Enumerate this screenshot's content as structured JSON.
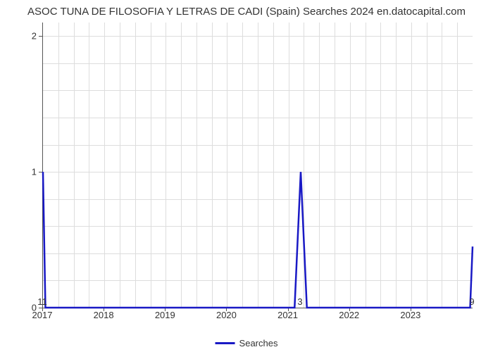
{
  "chart": {
    "type": "line",
    "title": "ASOC TUNA DE FILOSOFIA Y LETRAS DE CADI (Spain) Searches 2024 en.datocapital.com",
    "title_fontsize": 15,
    "title_color": "#333333",
    "background_color": "#ffffff",
    "grid_color": "#dddddd",
    "axis_color": "#555555",
    "line_color": "#1919c5",
    "line_width": 2.5,
    "x": {
      "min": 2017,
      "max": 2024,
      "tick_step": 1,
      "tick_labels": [
        "2017",
        "2018",
        "2019",
        "2020",
        "2021",
        "2022",
        "2023"
      ],
      "tick_values": [
        2017,
        2018,
        2019,
        2020,
        2021,
        2022,
        2023
      ],
      "minor_gridlines_per_major": 4,
      "label_fontsize": 13
    },
    "y": {
      "min": 0,
      "max": 2.1,
      "major_ticks": [
        0,
        1,
        2
      ],
      "minor_gridlines_per_major": 5,
      "label_fontsize": 13
    },
    "series": [
      {
        "name": "Searches",
        "color": "#1919c5",
        "points": [
          [
            2017.0,
            1.0
          ],
          [
            2017.04,
            0.0
          ],
          [
            2021.1,
            0.0
          ],
          [
            2021.2,
            1.0
          ],
          [
            2021.3,
            0.0
          ],
          [
            2023.96,
            0.0
          ],
          [
            2024.0,
            0.45
          ]
        ]
      }
    ],
    "data_point_labels": [
      {
        "x": 2017.0,
        "y_pos_below_axis": true,
        "text": "11"
      },
      {
        "x": 2021.2,
        "y_pos_below_axis": true,
        "text": "3"
      },
      {
        "x": 2024.0,
        "y_pos_below_axis": true,
        "text": "9"
      }
    ],
    "legend": {
      "label": "Searches",
      "swatch_color": "#1919c5",
      "position": "bottom-center",
      "fontsize": 13
    }
  }
}
